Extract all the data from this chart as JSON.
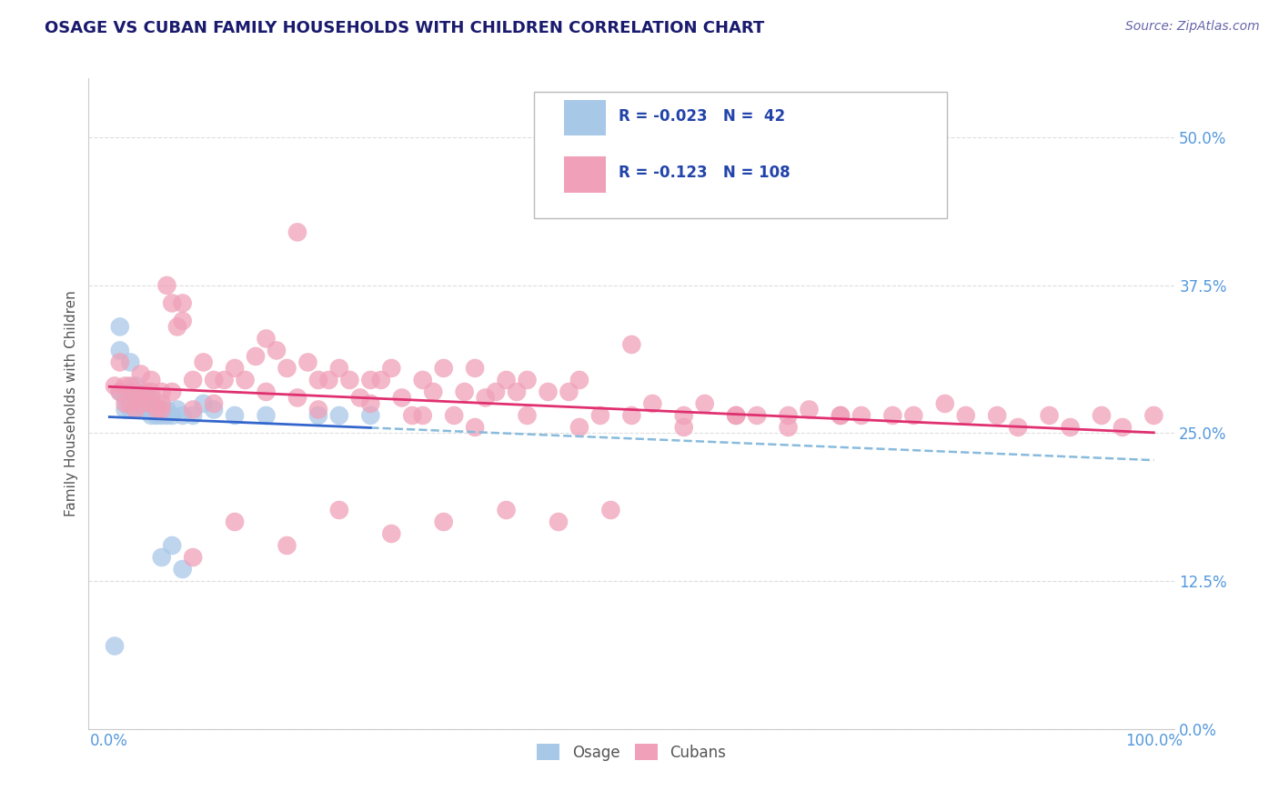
{
  "title": "OSAGE VS CUBAN FAMILY HOUSEHOLDS WITH CHILDREN CORRELATION CHART",
  "source": "Source: ZipAtlas.com",
  "ylabel": "Family Households with Children",
  "xlim": [
    -0.02,
    1.02
  ],
  "ylim": [
    0.0,
    0.55
  ],
  "yticks": [
    0.0,
    0.125,
    0.25,
    0.375,
    0.5
  ],
  "ytick_labels": [
    "0.0%",
    "12.5%",
    "25.0%",
    "37.5%",
    "50.0%"
  ],
  "xticks": [
    0.0,
    1.0
  ],
  "xtick_labels": [
    "0.0%",
    "100.0%"
  ],
  "osage_color": "#a8c8e8",
  "cubans_color": "#f0a0b8",
  "osage_line_color": "#3366cc",
  "cubans_line_color": "#e03070",
  "dashed_line_color": "#88bbdd",
  "title_color": "#1a1a6e",
  "source_color": "#6666aa",
  "legend_text_color": "#2244aa",
  "tick_color": "#5599dd",
  "grid_color": "#dddddd",
  "background_color": "#ffffff",
  "osage_x": [
    0.005,
    0.01,
    0.01,
    0.01,
    0.015,
    0.015,
    0.02,
    0.02,
    0.02,
    0.02,
    0.025,
    0.025,
    0.025,
    0.03,
    0.03,
    0.03,
    0.035,
    0.035,
    0.04,
    0.04,
    0.04,
    0.04,
    0.045,
    0.045,
    0.05,
    0.05,
    0.055,
    0.055,
    0.06,
    0.065,
    0.07,
    0.08,
    0.09,
    0.1,
    0.12,
    0.15,
    0.2,
    0.22,
    0.25,
    0.05,
    0.06,
    0.07
  ],
  "osage_y": [
    0.07,
    0.285,
    0.32,
    0.34,
    0.27,
    0.28,
    0.28,
    0.31,
    0.27,
    0.28,
    0.28,
    0.27,
    0.29,
    0.27,
    0.28,
    0.28,
    0.28,
    0.27,
    0.275,
    0.27,
    0.265,
    0.28,
    0.265,
    0.27,
    0.265,
    0.27,
    0.265,
    0.27,
    0.265,
    0.27,
    0.265,
    0.265,
    0.275,
    0.27,
    0.265,
    0.265,
    0.265,
    0.265,
    0.265,
    0.145,
    0.155,
    0.135
  ],
  "cubans_x": [
    0.005,
    0.01,
    0.01,
    0.015,
    0.015,
    0.02,
    0.02,
    0.025,
    0.025,
    0.03,
    0.03,
    0.035,
    0.04,
    0.04,
    0.045,
    0.05,
    0.05,
    0.055,
    0.06,
    0.065,
    0.07,
    0.07,
    0.08,
    0.09,
    0.1,
    0.11,
    0.12,
    0.13,
    0.14,
    0.15,
    0.16,
    0.17,
    0.18,
    0.19,
    0.2,
    0.21,
    0.22,
    0.23,
    0.24,
    0.25,
    0.26,
    0.27,
    0.28,
    0.29,
    0.3,
    0.31,
    0.32,
    0.33,
    0.34,
    0.35,
    0.36,
    0.37,
    0.38,
    0.39,
    0.4,
    0.42,
    0.44,
    0.45,
    0.47,
    0.5,
    0.52,
    0.55,
    0.57,
    0.6,
    0.62,
    0.65,
    0.67,
    0.7,
    0.72,
    0.75,
    0.77,
    0.8,
    0.82,
    0.85,
    0.87,
    0.9,
    0.92,
    0.95,
    0.97,
    1.0,
    0.03,
    0.04,
    0.05,
    0.06,
    0.08,
    0.1,
    0.15,
    0.2,
    0.25,
    0.3,
    0.35,
    0.4,
    0.45,
    0.5,
    0.55,
    0.6,
    0.65,
    0.7,
    0.08,
    0.12,
    0.17,
    0.22,
    0.27,
    0.32,
    0.38,
    0.43,
    0.48,
    0.18
  ],
  "cubans_y": [
    0.29,
    0.285,
    0.31,
    0.275,
    0.29,
    0.275,
    0.29,
    0.27,
    0.285,
    0.275,
    0.3,
    0.285,
    0.275,
    0.295,
    0.27,
    0.27,
    0.285,
    0.375,
    0.36,
    0.34,
    0.345,
    0.36,
    0.295,
    0.31,
    0.295,
    0.295,
    0.305,
    0.295,
    0.315,
    0.33,
    0.32,
    0.305,
    0.28,
    0.31,
    0.295,
    0.295,
    0.305,
    0.295,
    0.28,
    0.295,
    0.295,
    0.305,
    0.28,
    0.265,
    0.295,
    0.285,
    0.305,
    0.265,
    0.285,
    0.305,
    0.28,
    0.285,
    0.295,
    0.285,
    0.295,
    0.285,
    0.285,
    0.295,
    0.265,
    0.325,
    0.275,
    0.265,
    0.275,
    0.265,
    0.265,
    0.265,
    0.27,
    0.265,
    0.265,
    0.265,
    0.265,
    0.275,
    0.265,
    0.265,
    0.255,
    0.265,
    0.255,
    0.265,
    0.255,
    0.265,
    0.28,
    0.285,
    0.275,
    0.285,
    0.27,
    0.275,
    0.285,
    0.27,
    0.275,
    0.265,
    0.255,
    0.265,
    0.255,
    0.265,
    0.255,
    0.265,
    0.255,
    0.265,
    0.145,
    0.175,
    0.155,
    0.185,
    0.165,
    0.175,
    0.185,
    0.175,
    0.185,
    0.42
  ]
}
